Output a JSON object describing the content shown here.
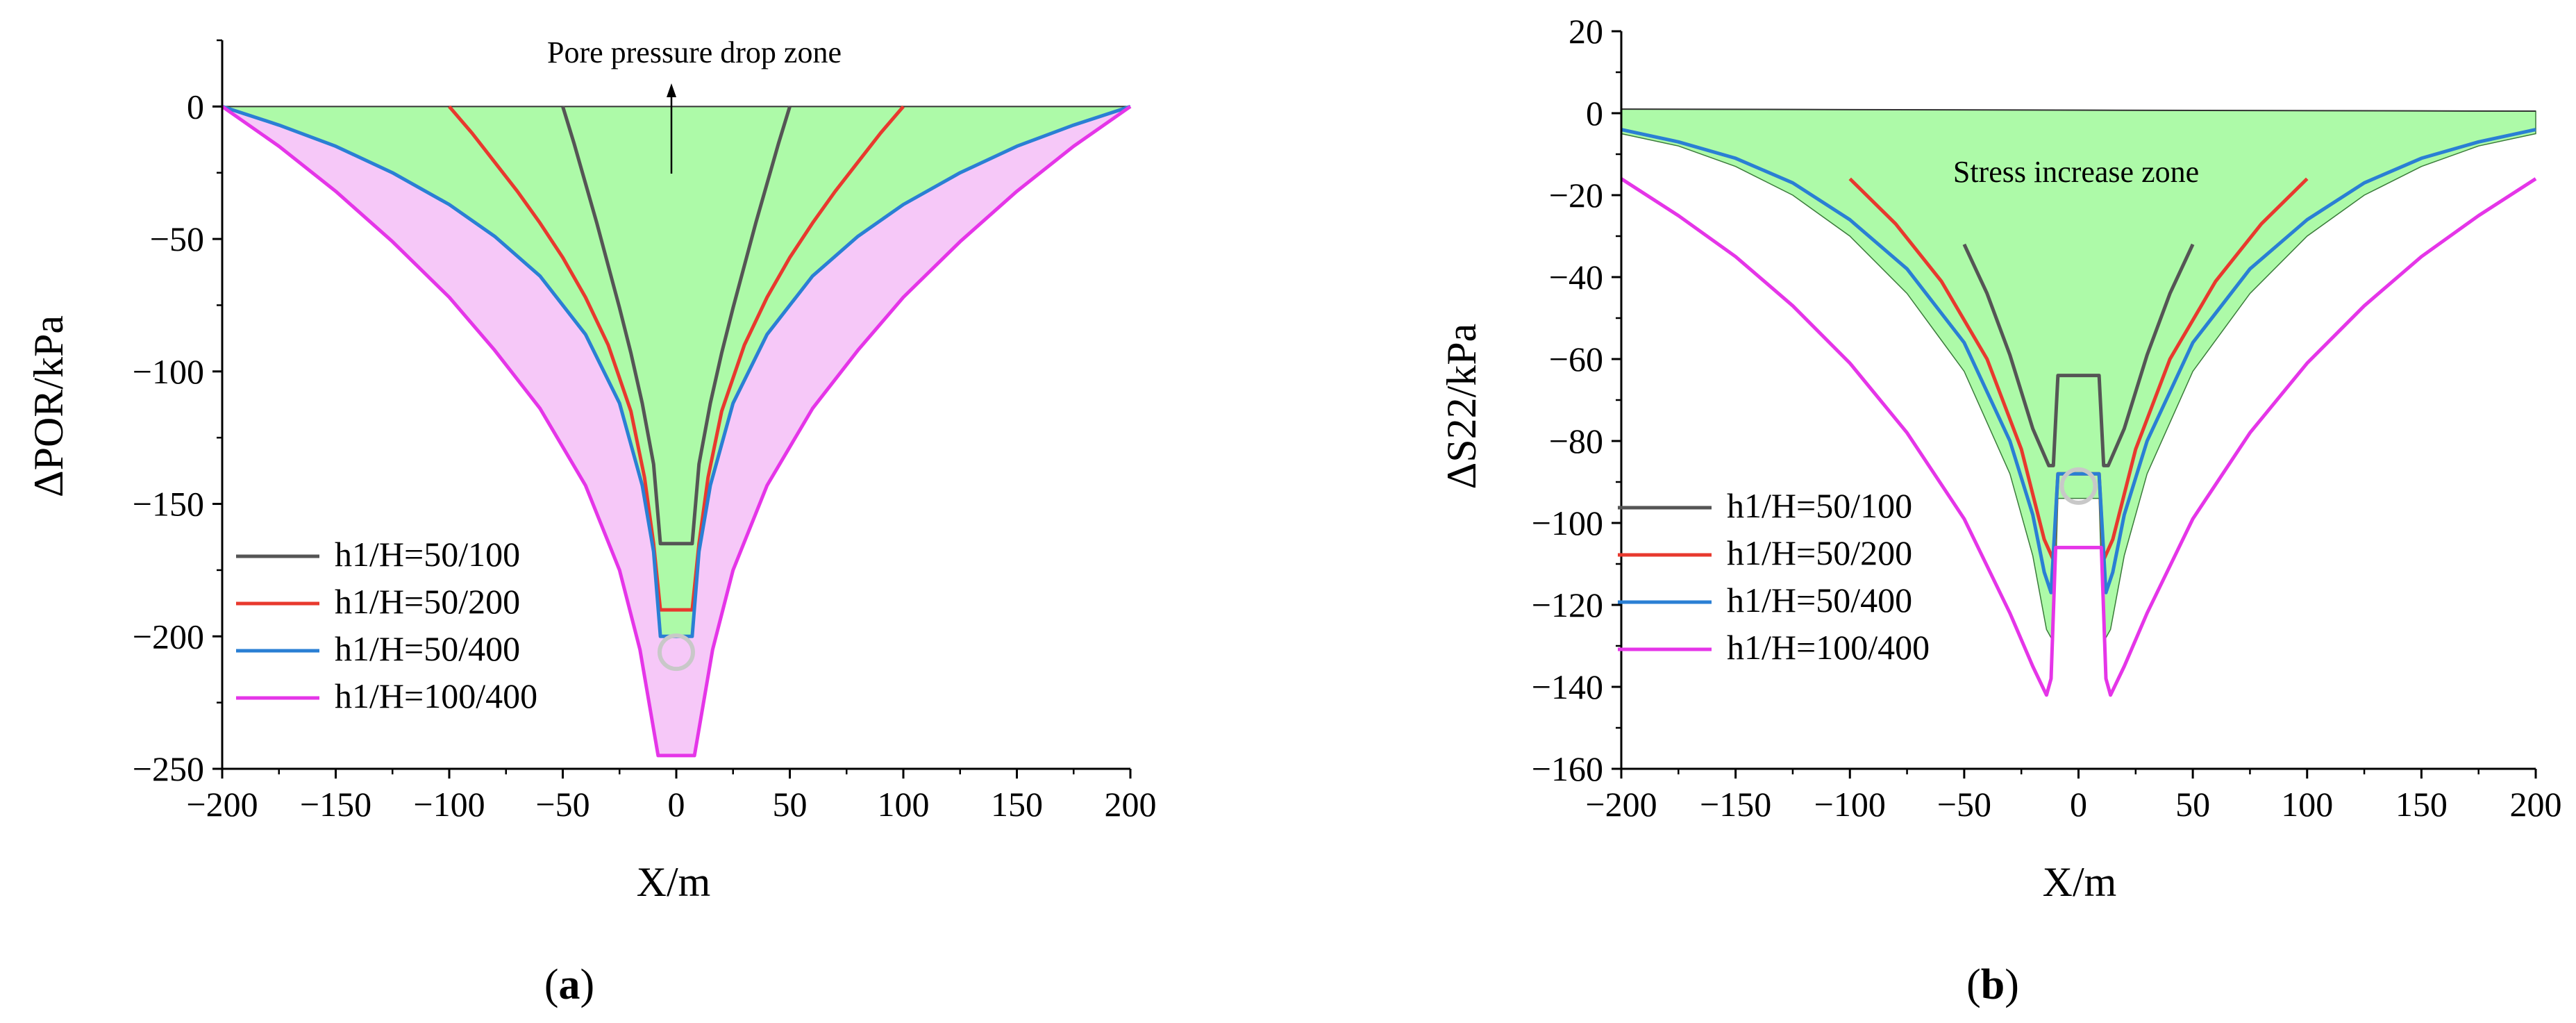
{
  "colors": {
    "h50_100": "#555555",
    "h50_200": "#e8392e",
    "h50_400": "#2a7fd4",
    "h100_400": "#e535e8",
    "green_fill": "#adfaa8",
    "pink_fill": "#f6c8f8",
    "circle": "#c8c8c8"
  },
  "chart_data": [
    {
      "id": "a",
      "type": "line",
      "panel_label_pre": "(",
      "panel_label": "a",
      "panel_label_post": ")",
      "xlabel": "X/m",
      "ylabel": "ΔPOR/kPa",
      "xlim": [
        -200,
        200
      ],
      "ylim": [
        -250,
        25
      ],
      "xticks": [
        -200,
        -150,
        -100,
        -50,
        0,
        50,
        100,
        150,
        200
      ],
      "yticks": [
        0,
        -50,
        -100,
        -150,
        -200,
        -250
      ],
      "xtick_labels": [
        "−200",
        "−150",
        "−100",
        "−50",
        "0",
        "50",
        "100",
        "150",
        "200"
      ],
      "ytick_labels": [
        "0",
        "−50",
        "−100",
        "−150",
        "−200",
        "−250"
      ],
      "annotation": "Pore pressure drop zone",
      "legend_position": "lower-left",
      "series": [
        {
          "name": "h1/H=50/100",
          "color": "h50_100",
          "x": [
            -50,
            -45,
            -40,
            -35,
            -30,
            -25,
            -20,
            -15,
            -10,
            -7,
            -7,
            7,
            7,
            10,
            15,
            20,
            25,
            30,
            35,
            40,
            45,
            50
          ],
          "y": [
            0,
            -14,
            -29,
            -44,
            -60,
            -76,
            -93,
            -112,
            -135,
            -165,
            -165,
            -165,
            -165,
            -135,
            -112,
            -93,
            -76,
            -60,
            -44,
            -29,
            -14,
            0
          ]
        },
        {
          "name": "h1/H=50/200",
          "color": "h50_200",
          "x": [
            -100,
            -90,
            -80,
            -70,
            -60,
            -50,
            -40,
            -30,
            -20,
            -14,
            -10,
            -7,
            -7,
            7,
            7,
            10,
            14,
            20,
            30,
            40,
            50,
            60,
            70,
            80,
            90,
            100
          ],
          "y": [
            0,
            -10,
            -21,
            -32,
            -44,
            -57,
            -72,
            -90,
            -115,
            -140,
            -165,
            -190,
            -190,
            -190,
            -190,
            -165,
            -140,
            -115,
            -90,
            -72,
            -57,
            -44,
            -32,
            -21,
            -10,
            0
          ]
        },
        {
          "name": "h1/H=50/400",
          "color": "h50_400",
          "x": [
            -200,
            -175,
            -150,
            -125,
            -100,
            -80,
            -60,
            -40,
            -25,
            -15,
            -10,
            -7,
            -7,
            7,
            7,
            10,
            15,
            25,
            40,
            60,
            80,
            100,
            125,
            150,
            175,
            200
          ],
          "y": [
            0,
            -7,
            -15,
            -25,
            -37,
            -49,
            -64,
            -86,
            -112,
            -143,
            -168,
            -200,
            -200,
            -200,
            -200,
            -168,
            -143,
            -112,
            -86,
            -64,
            -49,
            -37,
            -25,
            -15,
            -7,
            0
          ]
        },
        {
          "name": "h1/H=100/400",
          "color": "h100_400",
          "x": [
            -200,
            -175,
            -150,
            -125,
            -100,
            -80,
            -60,
            -40,
            -25,
            -16,
            -12,
            -8,
            -8,
            8,
            8,
            12,
            16,
            25,
            40,
            60,
            80,
            100,
            125,
            150,
            175,
            200
          ],
          "y": [
            0,
            -15,
            -32,
            -51,
            -72,
            -92,
            -114,
            -143,
            -175,
            -205,
            -225,
            -245,
            -245,
            -245,
            -245,
            -225,
            -205,
            -175,
            -143,
            -114,
            -92,
            -72,
            -51,
            -32,
            -15,
            0
          ]
        }
      ]
    },
    {
      "id": "b",
      "type": "line",
      "panel_label_pre": "(",
      "panel_label": "b",
      "panel_label_post": ")",
      "xlabel": "X/m",
      "ylabel": "ΔS22/kPa",
      "xlim": [
        -200,
        200
      ],
      "ylim": [
        -160,
        20
      ],
      "xticks": [
        -200,
        -150,
        -100,
        -50,
        0,
        50,
        100,
        150,
        200
      ],
      "yticks": [
        20,
        0,
        -20,
        -40,
        -60,
        -80,
        -100,
        -120,
        -140,
        -160
      ],
      "xtick_labels": [
        "−200",
        "−150",
        "−100",
        "−50",
        "0",
        "50",
        "100",
        "150",
        "200"
      ],
      "ytick_labels": [
        "20",
        "0",
        "−20",
        "−40",
        "−60",
        "−80",
        "−100",
        "−120",
        "−140",
        "−160"
      ],
      "annotation": "Stress increase zone",
      "legend_position": "lower-left",
      "series": [
        {
          "name": "h1/H=50/100",
          "color": "h50_100",
          "x": [
            -50,
            -40,
            -30,
            -20,
            -13,
            -11,
            -9,
            -9,
            9,
            9,
            11,
            13,
            20,
            30,
            40,
            50
          ],
          "y": [
            -32,
            -44,
            -59,
            -77,
            -86,
            -86,
            -64,
            -64,
            -64,
            -64,
            -86,
            -86,
            -77,
            -59,
            -44,
            -32
          ]
        },
        {
          "name": "h1/H=50/200",
          "color": "h50_200",
          "x": [
            -100,
            -80,
            -60,
            -40,
            -25,
            -15,
            -11,
            -9,
            -9,
            9,
            9,
            11,
            15,
            25,
            40,
            60,
            80,
            100
          ],
          "y": [
            -16,
            -27,
            -41,
            -60,
            -82,
            -104,
            -109,
            -88,
            -88,
            -88,
            -88,
            -109,
            -104,
            -82,
            -60,
            -41,
            -27,
            -16
          ]
        },
        {
          "name": "h1/H=50/400",
          "color": "h50_400",
          "x": [
            -200,
            -175,
            -150,
            -125,
            -100,
            -75,
            -50,
            -30,
            -20,
            -15,
            -12,
            -9,
            -9,
            9,
            9,
            12,
            15,
            20,
            30,
            50,
            75,
            100,
            125,
            150,
            175,
            200
          ],
          "y": [
            -4,
            -7,
            -11,
            -17,
            -26,
            -38,
            -56,
            -80,
            -98,
            -112,
            -117,
            -88,
            -88,
            -88,
            -88,
            -117,
            -112,
            -98,
            -80,
            -56,
            -38,
            -26,
            -17,
            -11,
            -7,
            -4
          ]
        },
        {
          "name": "h1/H=100/400",
          "color": "h100_400",
          "x": [
            -200,
            -175,
            -150,
            -125,
            -100,
            -75,
            -50,
            -30,
            -20,
            -14,
            -12,
            -10,
            -10,
            10,
            10,
            12,
            14,
            20,
            30,
            50,
            75,
            100,
            125,
            150,
            175,
            200
          ],
          "y": [
            -16,
            -25,
            -35,
            -47,
            -61,
            -78,
            -99,
            -122,
            -135,
            -142,
            -138,
            -106,
            -106,
            -106,
            -106,
            -138,
            -142,
            -135,
            -122,
            -99,
            -78,
            -61,
            -47,
            -35,
            -25,
            -16
          ]
        }
      ]
    }
  ]
}
